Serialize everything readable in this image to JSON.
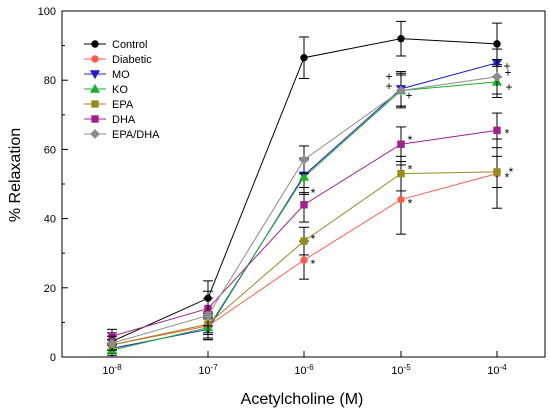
{
  "chart_data": {
    "type": "line",
    "xlabel": "Acetylcholine (M)",
    "ylabel": "% Relaxation",
    "ylim": [
      0,
      100
    ],
    "yticks": [
      0,
      20,
      40,
      60,
      80,
      100
    ],
    "categories": [
      "10-8",
      "10-7",
      "10-6",
      "10-5",
      "10-4"
    ],
    "category_labels": [
      {
        "base": "10",
        "exp": "-8"
      },
      {
        "base": "10",
        "exp": "-7"
      },
      {
        "base": "10",
        "exp": "-6"
      },
      {
        "base": "10",
        "exp": "-5"
      },
      {
        "base": "10",
        "exp": "-4"
      }
    ],
    "legend_position": "top-left",
    "series": [
      {
        "name": "Control",
        "color": "#000000",
        "marker": "circle",
        "values": [
          4.5,
          17,
          86.5,
          92,
          90.5
        ],
        "errors": [
          2.5,
          5,
          6,
          5,
          6
        ],
        "annotations": [
          "",
          "",
          "",
          "",
          ""
        ]
      },
      {
        "name": "Diabetic",
        "color": "#ff5a4e",
        "marker": "circle",
        "values": [
          3.5,
          9,
          28,
          45.5,
          53
        ],
        "errors": [
          1.5,
          4,
          5.5,
          10,
          10
        ],
        "annotations": [
          "",
          "",
          "*",
          "*",
          "*"
        ]
      },
      {
        "name": "MO",
        "color": "#1f1fd0",
        "marker": "triangle-down",
        "values": [
          2.5,
          8,
          52.5,
          77.5,
          85
        ],
        "errors": [
          1.5,
          3,
          5,
          5,
          4
        ],
        "annotations": [
          "",
          "",
          "",
          "+",
          "+"
        ]
      },
      {
        "name": "KO",
        "color": "#1ab02a",
        "marker": "triangle-up",
        "values": [
          2,
          8.5,
          52,
          77,
          79.5
        ],
        "errors": [
          1.5,
          3,
          5,
          4.5,
          4.5
        ],
        "annotations": [
          "",
          "",
          "",
          "+",
          "+"
        ]
      },
      {
        "name": "EPA",
        "color": "#9a8a1e",
        "marker": "square",
        "values": [
          3.5,
          9.5,
          33.5,
          53,
          53.5
        ],
        "errors": [
          1.5,
          3,
          4,
          5,
          4.5
        ],
        "annotations": [
          "",
          "",
          "*",
          "*",
          "*"
        ]
      },
      {
        "name": "DHA",
        "color": "#a0208c",
        "marker": "square",
        "values": [
          6,
          14,
          44,
          61.5,
          65.5
        ],
        "errors": [
          2,
          5,
          5,
          5,
          5
        ],
        "annotations": [
          "",
          "",
          "*",
          "*",
          "*"
        ]
      },
      {
        "name": "EPA/DHA",
        "color": "#8c8c8c",
        "marker": "diamond",
        "values": [
          4,
          12,
          57,
          77,
          81
        ],
        "errors": [
          2,
          5,
          4,
          5,
          5
        ],
        "annotations": [
          "",
          "",
          "",
          "+",
          "+"
        ]
      }
    ]
  }
}
